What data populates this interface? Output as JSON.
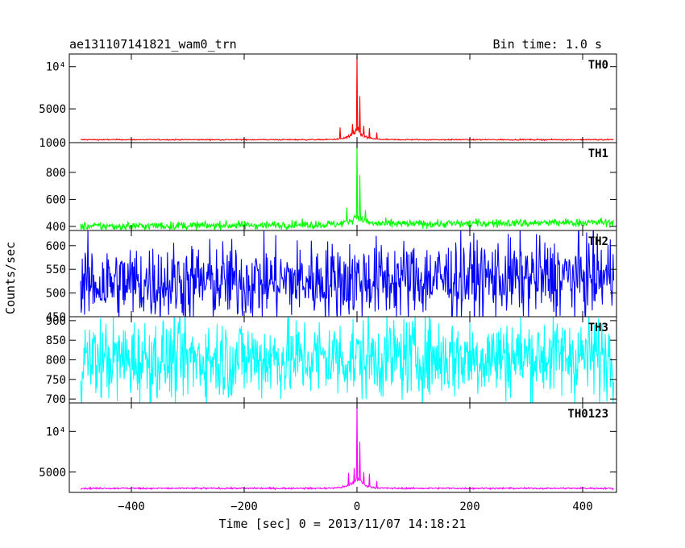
{
  "header": {
    "title": "ae131107141821_wam0_trn",
    "bin_time": "Bin time: 1.0 s"
  },
  "chart_data": {
    "type": "line",
    "title": "ae131107141821_wam0_trn",
    "xlabel": "Time [sec] 0 = 2013/11/07 14:18:21",
    "ylabel": "Counts/sec",
    "xlim": [
      -510,
      460
    ],
    "data_xrange": [
      -490,
      455
    ],
    "x_ticks": [
      -400,
      -200,
      0,
      200,
      400
    ],
    "x_tick_labels": [
      "−400",
      "−200",
      "0",
      "200",
      "400"
    ],
    "grid": false,
    "panels": [
      {
        "name": "TH0",
        "color": "#ff0000",
        "ylim": [
          1000,
          11500
        ],
        "y_ticks": [
          1000,
          5000,
          10000
        ],
        "y_tick_labels": [
          "1000",
          "5000",
          "10⁴"
        ],
        "baseline": 1350,
        "noise": 60,
        "drift": 0,
        "peak": 11300,
        "features": [
          {
            "x": -30,
            "value": 2800
          },
          {
            "x": -8,
            "value": 3200
          },
          {
            "x": 0,
            "value": 11300
          },
          {
            "x": 5,
            "value": 6500
          },
          {
            "x": 12,
            "value": 3000
          },
          {
            "x": 22,
            "value": 2700
          },
          {
            "x": 35,
            "value": 2200
          }
        ]
      },
      {
        "name": "TH1",
        "color": "#00ff00",
        "ylim": [
          370,
          1020
        ],
        "y_ticks": [
          400,
          600,
          800
        ],
        "y_tick_labels": [
          "400",
          "600",
          "800"
        ],
        "baseline": 400,
        "noise": 28,
        "drift": 30,
        "peak": 1010,
        "features": [
          {
            "x": -18,
            "value": 540
          },
          {
            "x": 0,
            "value": 1010
          },
          {
            "x": 5,
            "value": 780
          },
          {
            "x": 15,
            "value": 520
          }
        ]
      },
      {
        "name": "TH2",
        "color": "#0000ff",
        "ylim": [
          450,
          632
        ],
        "y_ticks": [
          450,
          500,
          550,
          600
        ],
        "y_tick_labels": [
          "450",
          "500",
          "550",
          "600"
        ],
        "baseline": 520,
        "noise": 75,
        "drift": 15,
        "features": []
      },
      {
        "name": "TH3",
        "color": "#00ffff",
        "ylim": [
          690,
          910
        ],
        "y_ticks": [
          700,
          750,
          800,
          850,
          900
        ],
        "y_tick_labels": [
          "700",
          "750",
          "800",
          "850",
          "900"
        ],
        "baseline": 800,
        "noise": 95,
        "drift": 10,
        "features": []
      },
      {
        "name": "TH0123",
        "color": "#ff00ff",
        "ylim": [
          2500,
          13500
        ],
        "y_ticks": [
          5000,
          10000
        ],
        "y_tick_labels": [
          "5000",
          "10⁴"
        ],
        "baseline": 3000,
        "noise": 90,
        "drift": 0,
        "peak": 13300,
        "features": [
          {
            "x": -15,
            "value": 4900
          },
          {
            "x": -5,
            "value": 5500
          },
          {
            "x": 0,
            "value": 13300
          },
          {
            "x": 5,
            "value": 8700
          },
          {
            "x": 12,
            "value": 5000
          },
          {
            "x": 22,
            "value": 4800
          },
          {
            "x": 35,
            "value": 3900
          }
        ]
      }
    ]
  }
}
